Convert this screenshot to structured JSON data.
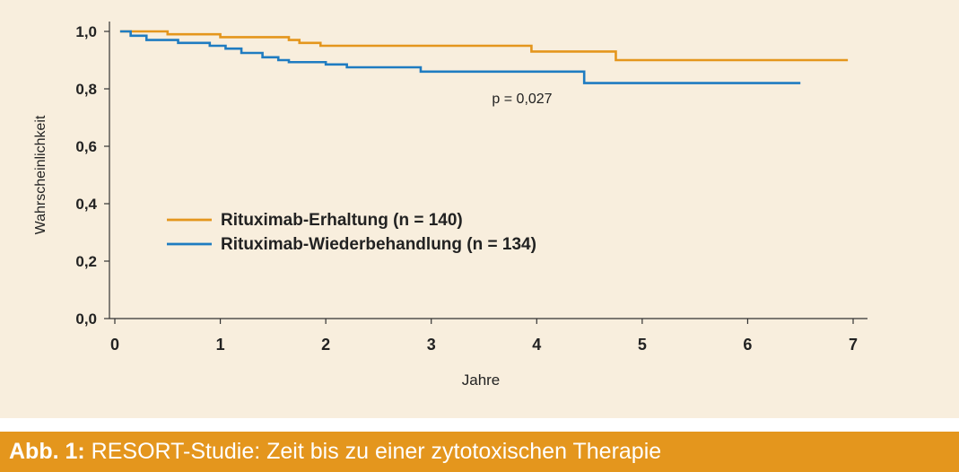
{
  "caption": {
    "label": "Abb. 1:",
    "text": "RESORT-Studie: Zeit bis zu einer zytotoxischen Therapie"
  },
  "chart_data": {
    "type": "line",
    "title": "",
    "xlabel": "Jahre",
    "ylabel": "Wahrscheinlichkeit",
    "xlim": [
      0,
      7
    ],
    "ylim": [
      0,
      1
    ],
    "xticks": [
      "0",
      "1",
      "2",
      "3",
      "4",
      "5",
      "6",
      "7"
    ],
    "yticks": [
      "0,0",
      "0,2",
      "0,4",
      "0,6",
      "0,8",
      "1,0"
    ],
    "grid": false,
    "legend_position": "center-left",
    "annotation": "p = 0,027",
    "series": [
      {
        "name": "Rituximab-Erhaltung (n = 140)",
        "color": "#e4961d",
        "step": true,
        "x": [
          0.05,
          0.5,
          1.0,
          1.65,
          1.75,
          1.95,
          3.5,
          3.95,
          4.75,
          6.95
        ],
        "y": [
          1.0,
          0.99,
          0.98,
          0.97,
          0.96,
          0.95,
          0.95,
          0.93,
          0.9,
          0.9
        ]
      },
      {
        "name": "Rituximab-Wiederbehandlung (n = 134)",
        "color": "#1f7cc1",
        "step": true,
        "x": [
          0.05,
          0.15,
          0.3,
          0.6,
          0.9,
          1.05,
          1.2,
          1.4,
          1.55,
          1.65,
          2.0,
          2.2,
          2.9,
          3.9,
          4.45,
          6.5
        ],
        "y": [
          1.0,
          0.985,
          0.97,
          0.96,
          0.95,
          0.94,
          0.925,
          0.91,
          0.9,
          0.893,
          0.885,
          0.875,
          0.86,
          0.86,
          0.82,
          0.82
        ]
      }
    ]
  }
}
